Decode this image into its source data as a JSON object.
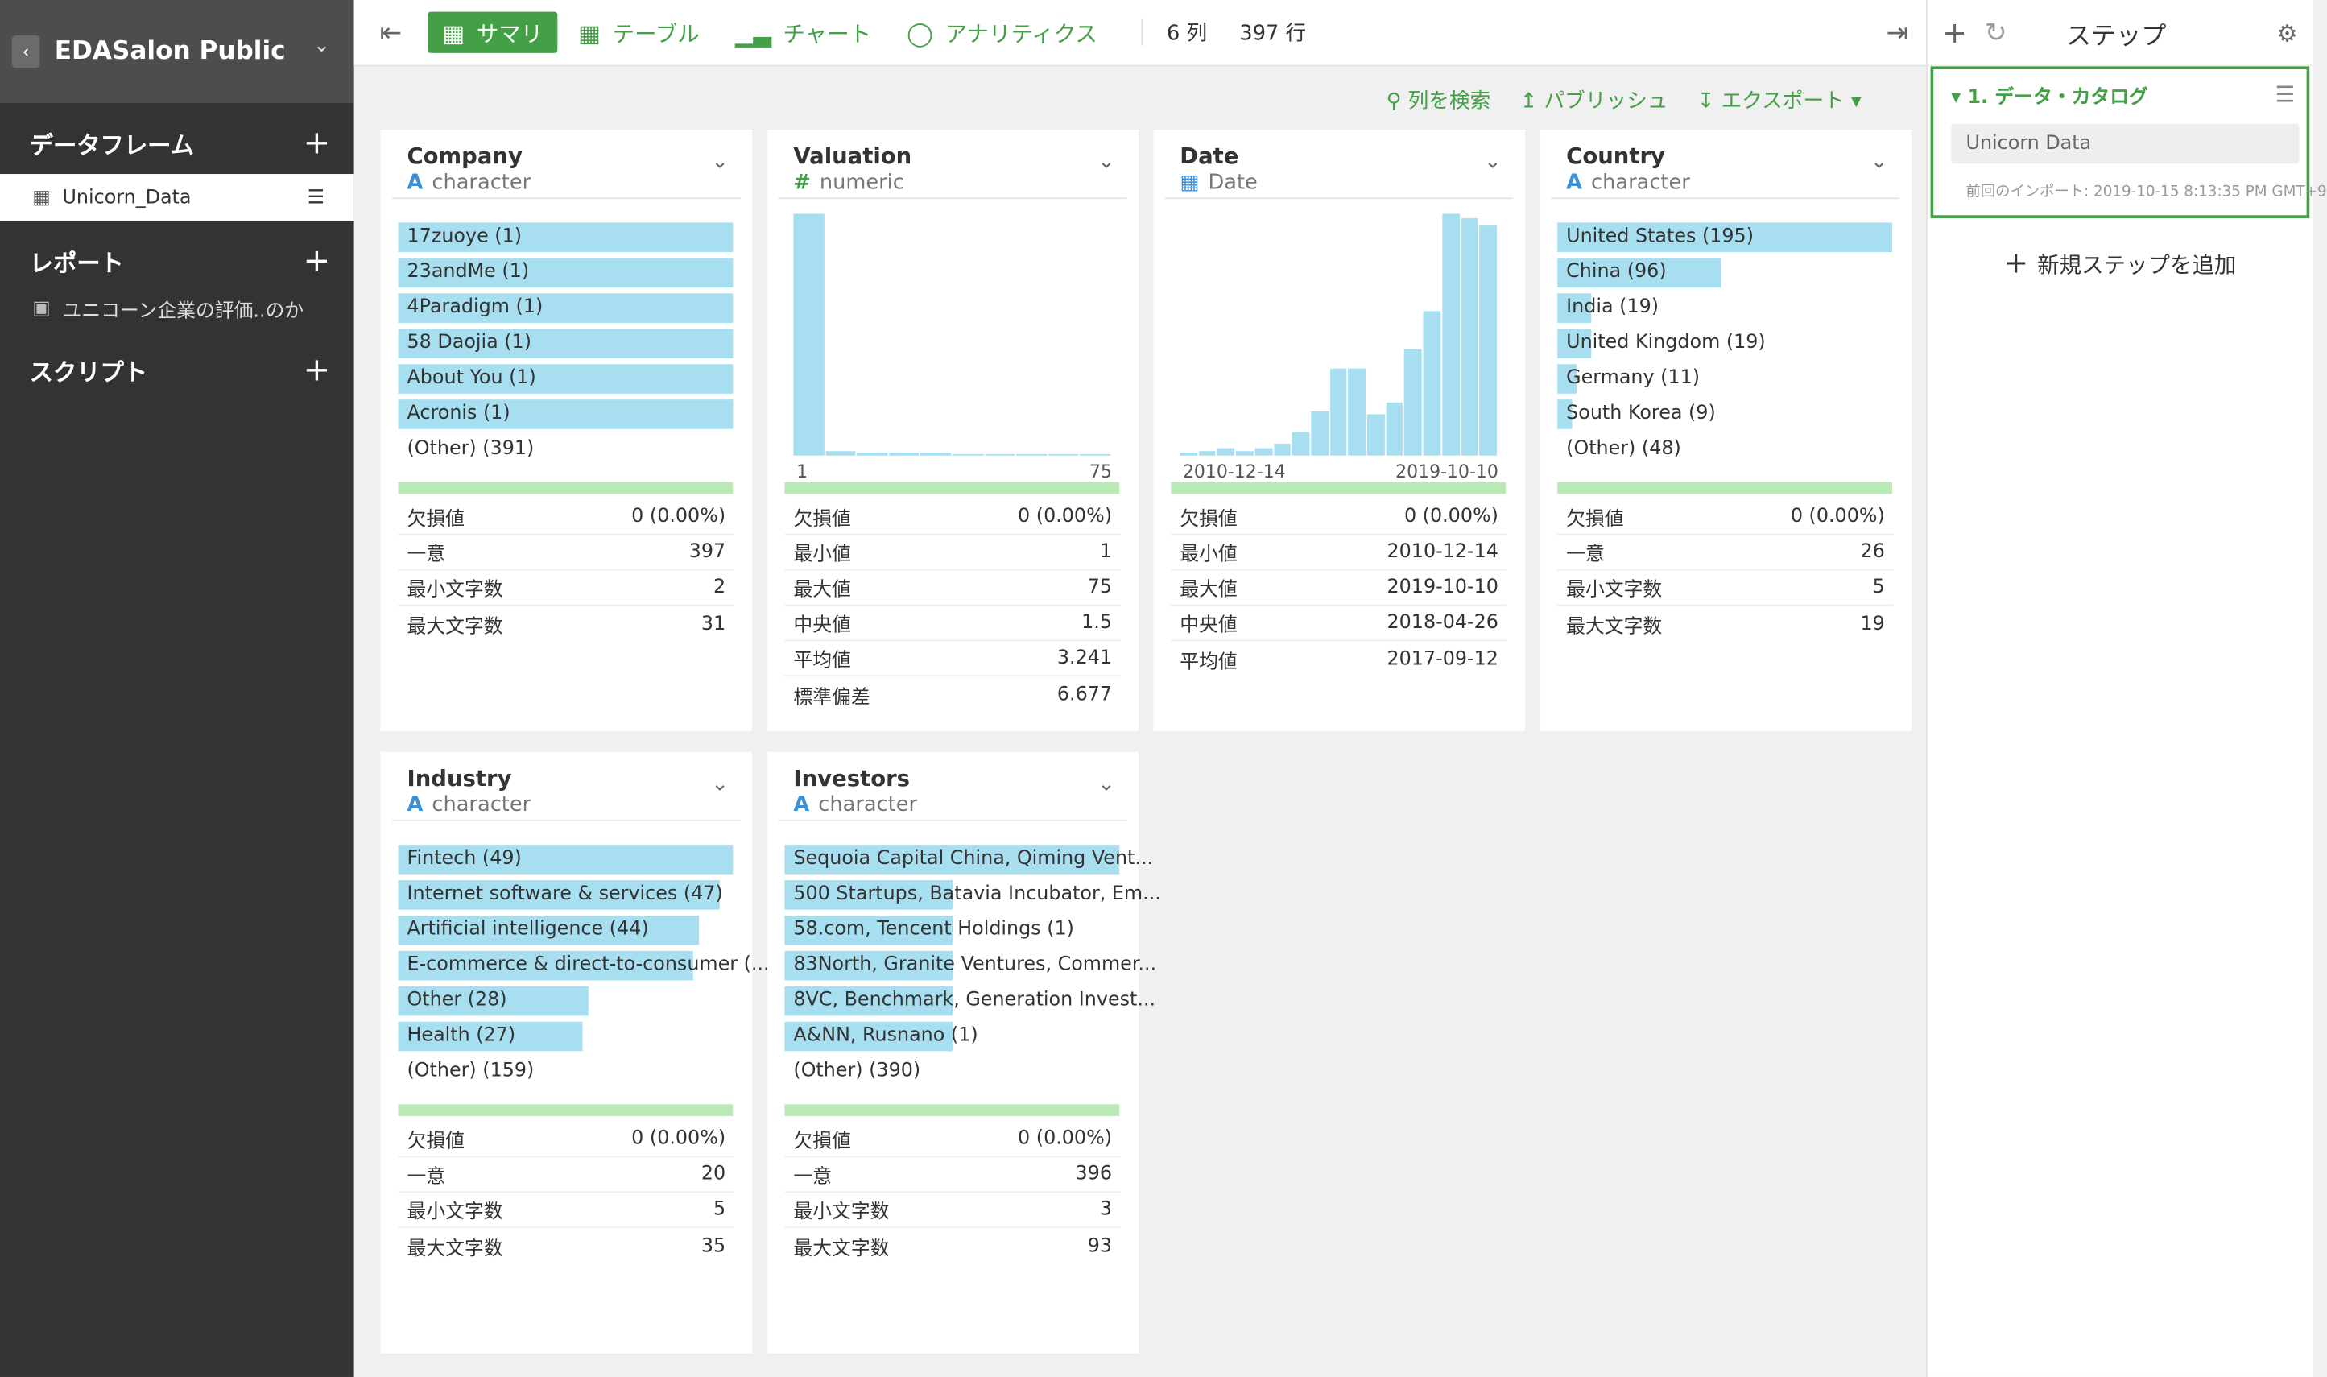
{
  "sidebar": {
    "project_name": "EDASalon Public",
    "dataframes_label": "データフレーム",
    "dataframe_item": "Unicorn_Data",
    "reports_label": "レポート",
    "report_item": "ユニコーン企業の評価..のか",
    "scripts_label": "スクリプト"
  },
  "toolbar": {
    "tabs": [
      {
        "label": "サマリ",
        "icon": "grid-icon"
      },
      {
        "label": "テーブル",
        "icon": "table-icon"
      },
      {
        "label": "チャート",
        "icon": "chart-icon"
      },
      {
        "label": "アナリティクス",
        "icon": "bulb-icon"
      }
    ],
    "columns_count": "6 列",
    "rows_count": "397 行"
  },
  "actions": {
    "search": "列を検索",
    "publish": "パブリッシュ",
    "export": "エクスポート"
  },
  "right_panel": {
    "title": "ステップ",
    "step_name": "1. データ・カタログ",
    "step_source": "Unicorn Data",
    "step_import": "前回のインポート: 2019-10-15 8:13:35 PM GMT+9",
    "add_step": "新規ステップを追加"
  },
  "columns": [
    {
      "name": "Company",
      "type": "character",
      "type_icon": "A",
      "kind": "bars",
      "bars": [
        {
          "label": "17zuoye (1)",
          "frac": 1.0
        },
        {
          "label": "23andMe (1)",
          "frac": 1.0
        },
        {
          "label": "4Paradigm (1)",
          "frac": 1.0
        },
        {
          "label": "58 Daojia (1)",
          "frac": 1.0
        },
        {
          "label": "About You (1)",
          "frac": 1.0
        },
        {
          "label": "Acronis (1)",
          "frac": 1.0
        }
      ],
      "other": "(Other) (391)",
      "stats": [
        {
          "k": "欠損値",
          "v": "0 (0.00%)"
        },
        {
          "k": "一意",
          "v": "397"
        },
        {
          "k": "最小文字数",
          "v": "2"
        },
        {
          "k": "最大文字数",
          "v": "31"
        }
      ]
    },
    {
      "name": "Valuation",
      "type": "numeric",
      "type_icon": "#",
      "kind": "hist",
      "hist": [
        1.0,
        0.02,
        0.01,
        0.01,
        0.01,
        0.005,
        0.005,
        0.005,
        0.005,
        0.005
      ],
      "axis_min": "1",
      "axis_max": "75",
      "stats": [
        {
          "k": "欠損値",
          "v": "0 (0.00%)"
        },
        {
          "k": "最小値",
          "v": "1"
        },
        {
          "k": "最大値",
          "v": "75"
        },
        {
          "k": "中央値",
          "v": "1.5"
        },
        {
          "k": "平均値",
          "v": "3.241"
        },
        {
          "k": "標準偏差",
          "v": "6.677"
        }
      ]
    },
    {
      "name": "Date",
      "type": "Date",
      "type_icon": "calendar",
      "kind": "hist",
      "hist": [
        0.01,
        0.02,
        0.03,
        0.02,
        0.03,
        0.05,
        0.1,
        0.18,
        0.36,
        0.36,
        0.17,
        0.22,
        0.44,
        0.6,
        1.0,
        0.98,
        0.95
      ],
      "axis_min": "2010-12-14",
      "axis_max": "2019-10-10",
      "stats": [
        {
          "k": "欠損値",
          "v": "0 (0.00%)"
        },
        {
          "k": "最小値",
          "v": "2010-12-14"
        },
        {
          "k": "最大値",
          "v": "2019-10-10"
        },
        {
          "k": "中央値",
          "v": "2018-04-26"
        },
        {
          "k": "平均値",
          "v": "2017-09-12"
        }
      ]
    },
    {
      "name": "Country",
      "type": "character",
      "type_icon": "A",
      "kind": "bars",
      "bars": [
        {
          "label": "United States (195)",
          "frac": 1.0
        },
        {
          "label": "China (96)",
          "frac": 0.49
        },
        {
          "label": "India (19)",
          "frac": 0.1
        },
        {
          "label": "United Kingdom (19)",
          "frac": 0.1
        },
        {
          "label": "Germany (11)",
          "frac": 0.056
        },
        {
          "label": "South Korea (9)",
          "frac": 0.046
        }
      ],
      "other": "(Other) (48)",
      "stats": [
        {
          "k": "欠損値",
          "v": "0 (0.00%)"
        },
        {
          "k": "一意",
          "v": "26"
        },
        {
          "k": "最小文字数",
          "v": "5"
        },
        {
          "k": "最大文字数",
          "v": "19"
        }
      ]
    },
    {
      "name": "Industry",
      "type": "character",
      "type_icon": "A",
      "kind": "bars",
      "bars": [
        {
          "label": "Fintech (49)",
          "frac": 1.0
        },
        {
          "label": "Internet software & services (47)",
          "frac": 0.96
        },
        {
          "label": "Artificial intelligence (44)",
          "frac": 0.9
        },
        {
          "label": "E-commerce & direct-to-consumer (...",
          "frac": 0.88
        },
        {
          "label": "Other (28)",
          "frac": 0.57
        },
        {
          "label": "Health (27)",
          "frac": 0.55
        }
      ],
      "other": "(Other) (159)",
      "stats": [
        {
          "k": "欠損値",
          "v": "0 (0.00%)"
        },
        {
          "k": "一意",
          "v": "20"
        },
        {
          "k": "最小文字数",
          "v": "5"
        },
        {
          "k": "最大文字数",
          "v": "35"
        }
      ]
    },
    {
      "name": "Investors",
      "type": "character",
      "type_icon": "A",
      "kind": "bars",
      "bars": [
        {
          "label": "Sequoia Capital China, Qiming Vent...",
          "frac": 1.0
        },
        {
          "label": "500 Startups, Batavia Incubator, Em...",
          "frac": 0.5
        },
        {
          "label": "58.com, Tencent Holdings (1)",
          "frac": 0.5
        },
        {
          "label": "83North, Granite Ventures, Commer...",
          "frac": 0.5
        },
        {
          "label": "8VC, Benchmark, Generation Invest...",
          "frac": 0.5
        },
        {
          "label": "A&NN, Rusnano (1)",
          "frac": 0.5
        }
      ],
      "other": "(Other) (390)",
      "stats": [
        {
          "k": "欠損値",
          "v": "0 (0.00%)"
        },
        {
          "k": "一意",
          "v": "396"
        },
        {
          "k": "最小文字数",
          "v": "3"
        },
        {
          "k": "最大文字数",
          "v": "93"
        }
      ]
    }
  ]
}
